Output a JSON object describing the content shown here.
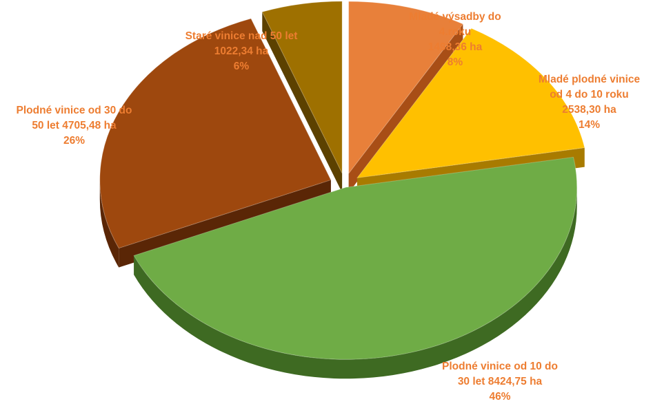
{
  "chart_data": {
    "type": "pie",
    "style": "3d-exploded",
    "unit": "ha",
    "slices": [
      {
        "name": "Mladé výsadby do 4.roku",
        "value": 1498.36,
        "percent": 8,
        "color": "#E8803A",
        "dark": "#A84E16",
        "label_lines": [
          "Mladé výsadby do",
          "4.roku",
          "1498,36 ha",
          "8%"
        ]
      },
      {
        "name": "Mladé plodné vinice od 4 do 10 roku",
        "value": 2538.3,
        "percent": 14,
        "color": "#FFC000",
        "dark": "#A87B00",
        "label_lines": [
          "Mladé plodné vinice",
          "od 4 do 10 roku",
          "2538,30 ha",
          "14%"
        ]
      },
      {
        "name": "Plodné vinice od 10 do 30 let",
        "value": 8424.75,
        "percent": 46,
        "color": "#6FAC46",
        "dark": "#3E6A22",
        "label_lines": [
          "Plodné vinice od 10 do",
          "30 let 8424,75 ha",
          "46%"
        ]
      },
      {
        "name": "Plodné vinice od 30 do 50 let",
        "value": 4705.48,
        "percent": 26,
        "color": "#9E480E",
        "dark": "#5A2606",
        "label_lines": [
          "Plodné vinice od 30 do",
          "50 let 4705,48 ha",
          "26%"
        ]
      },
      {
        "name": "Staré vinice nad 50 let",
        "value": 1022.34,
        "percent": 6,
        "color": "#9E7000",
        "dark": "#5C4100",
        "label_lines": [
          "Staré vinice nad 50 let",
          "1022,34 ha",
          "6%"
        ]
      }
    ],
    "legend": "none",
    "data_labels": "outside"
  }
}
